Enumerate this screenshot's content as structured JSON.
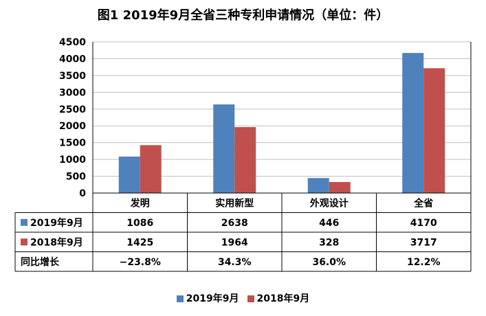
{
  "chart_data": {
    "type": "bar",
    "title": "图1  2019年9月全省三种专利申请情况（单位：件）",
    "categories": [
      "发明",
      "实用新型",
      "外观设计",
      "全省"
    ],
    "series": [
      {
        "name": "2019年9月",
        "color": "#4F81BD",
        "values": [
          1086,
          2638,
          446,
          4170
        ]
      },
      {
        "name": "2018年9月",
        "color": "#C0504D",
        "values": [
          1425,
          1964,
          328,
          3717
        ]
      }
    ],
    "ylim": [
      0,
      4500
    ],
    "yticks": [
      0,
      500,
      1000,
      1500,
      2000,
      2500,
      3000,
      3500,
      4000,
      4500
    ],
    "grid": true,
    "legend_position": "bottom",
    "table": {
      "rows": [
        {
          "label": "2019年9月",
          "cells": [
            "1086",
            "2638",
            "446",
            "4170"
          ]
        },
        {
          "label": "2018年9月",
          "cells": [
            "1425",
            "1964",
            "328",
            "3717"
          ]
        },
        {
          "label": "同比增长",
          "cells": [
            "−23.8%",
            "34.3%",
            "36.0%",
            "12.2%"
          ]
        }
      ]
    }
  }
}
